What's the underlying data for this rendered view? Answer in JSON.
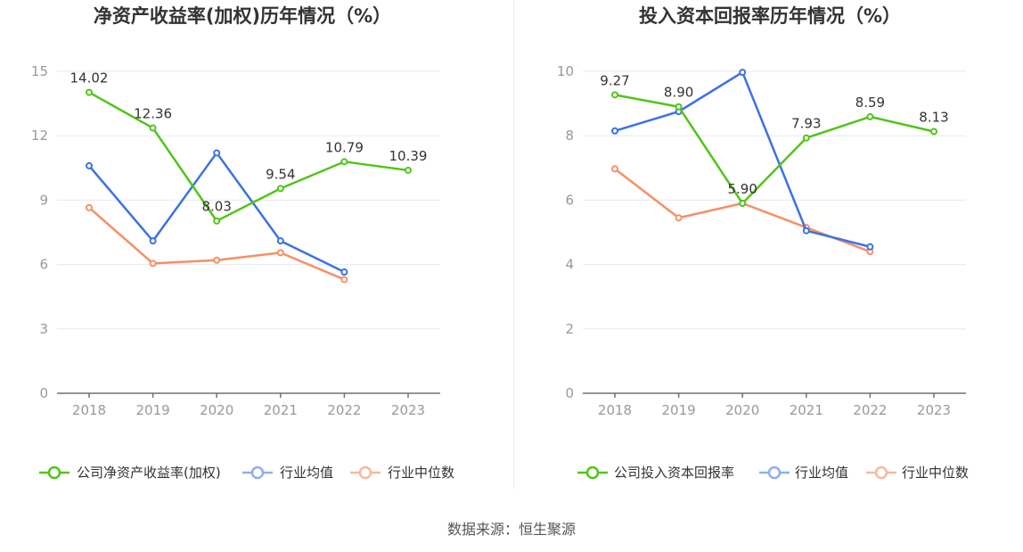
{
  "colors": {
    "company": "#52c41a",
    "average": "#3b72e4",
    "median": "#f59066",
    "legend_average": "#91aef0",
    "legend_median": "#f8b89d"
  },
  "source_text": "数据来源：恒生聚源",
  "chart_data": [
    {
      "type": "line",
      "title": "净资产收益率(加权)历年情况（%）",
      "x": [
        "2018",
        "2019",
        "2020",
        "2021",
        "2022",
        "2023"
      ],
      "ylim": [
        0,
        15
      ],
      "yticks": [
        "0",
        "3",
        "6",
        "9",
        "12",
        "15"
      ],
      "grid": true,
      "legend": "bottom",
      "series": [
        {
          "name": "公司净资产收益率(加权)",
          "key": "company",
          "values": [
            14.02,
            12.36,
            8.03,
            9.54,
            10.79,
            10.39
          ],
          "labels": [
            "14.02",
            "12.36",
            "8.03",
            "9.54",
            "10.79",
            "10.39"
          ]
        },
        {
          "name": "行业均值",
          "key": "average",
          "values": [
            10.6,
            7.1,
            11.2,
            7.1,
            5.65,
            null
          ]
        },
        {
          "name": "行业中位数",
          "key": "median",
          "values": [
            8.65,
            6.05,
            6.2,
            6.55,
            5.3,
            null
          ]
        }
      ]
    },
    {
      "type": "line",
      "title": "投入资本回报率历年情况（%）",
      "x": [
        "2018",
        "2019",
        "2020",
        "2021",
        "2022",
        "2023"
      ],
      "ylim": [
        0,
        10
      ],
      "yticks": [
        "0",
        "2",
        "4",
        "6",
        "8",
        "10"
      ],
      "grid": true,
      "legend": "bottom",
      "series": [
        {
          "name": "公司投入资本回报率",
          "key": "company",
          "values": [
            9.27,
            8.9,
            5.9,
            7.93,
            8.59,
            8.13
          ],
          "labels": [
            "9.27",
            "8.90",
            "5.90",
            "7.93",
            "8.59",
            "8.13"
          ]
        },
        {
          "name": "行业均值",
          "key": "average",
          "values": [
            8.15,
            8.75,
            9.97,
            5.05,
            4.55,
            null
          ]
        },
        {
          "name": "行业中位数",
          "key": "median",
          "values": [
            6.97,
            5.45,
            5.9,
            5.15,
            4.4,
            null
          ]
        }
      ]
    }
  ]
}
